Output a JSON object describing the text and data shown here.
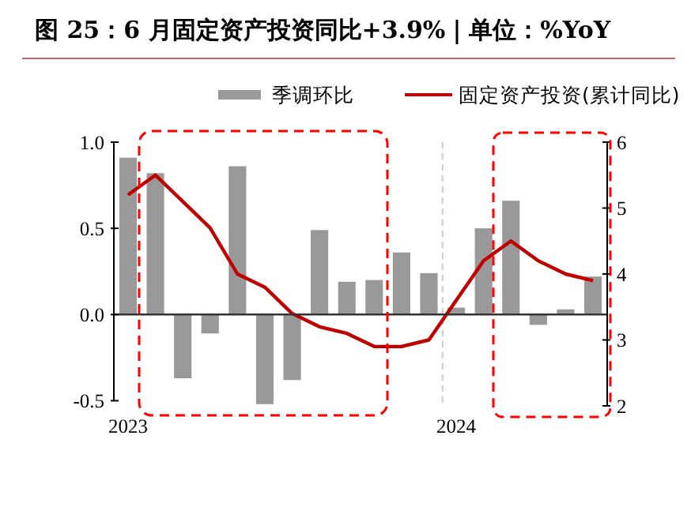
{
  "chart_data": {
    "type": "bar",
    "title": "图 25：6 月固定资产投资同比+3.9%｜单位：%YoY",
    "categories": [
      "2023",
      null,
      null,
      null,
      null,
      null,
      null,
      null,
      null,
      null,
      null,
      null,
      "2024",
      null,
      null,
      null,
      null,
      null
    ],
    "series": [
      {
        "name": "季调环比",
        "color": "#999999",
        "values": [
          0.91,
          0.82,
          -0.37,
          -0.11,
          0.86,
          -0.52,
          -0.38,
          0.49,
          0.19,
          0.2,
          0.36,
          0.24,
          0.04,
          0.5,
          0.66,
          -0.06,
          0.03,
          0.22
        ]
      },
      {
        "name": "固定资产投资(累计同比)",
        "type": "line",
        "axis": "y2",
        "color": "#c00000",
        "values": [
          5.2,
          5.5,
          5.1,
          4.7,
          4.0,
          3.8,
          3.4,
          3.2,
          3.1,
          2.9,
          2.9,
          3.0,
          null,
          4.2,
          4.5,
          4.2,
          4.0,
          3.9
        ]
      }
    ],
    "ylim": [
      -0.53,
      1.0
    ],
    "yticks": [
      {
        "value": -0.5,
        "label": "-0.5"
      },
      {
        "value": 0,
        "label": "0.0"
      },
      {
        "value": 0.5,
        "label": "0.5"
      },
      {
        "value": 1,
        "label": "1.0"
      }
    ],
    "y2lim": [
      2,
      6
    ],
    "y2ticks": [
      2,
      3,
      4,
      5,
      6
    ],
    "ref_lines": [
      {
        "axis": "x",
        "value": "2024",
        "color": "#cccccc",
        "line_style": "dashed"
      }
    ],
    "legend": "top"
  }
}
